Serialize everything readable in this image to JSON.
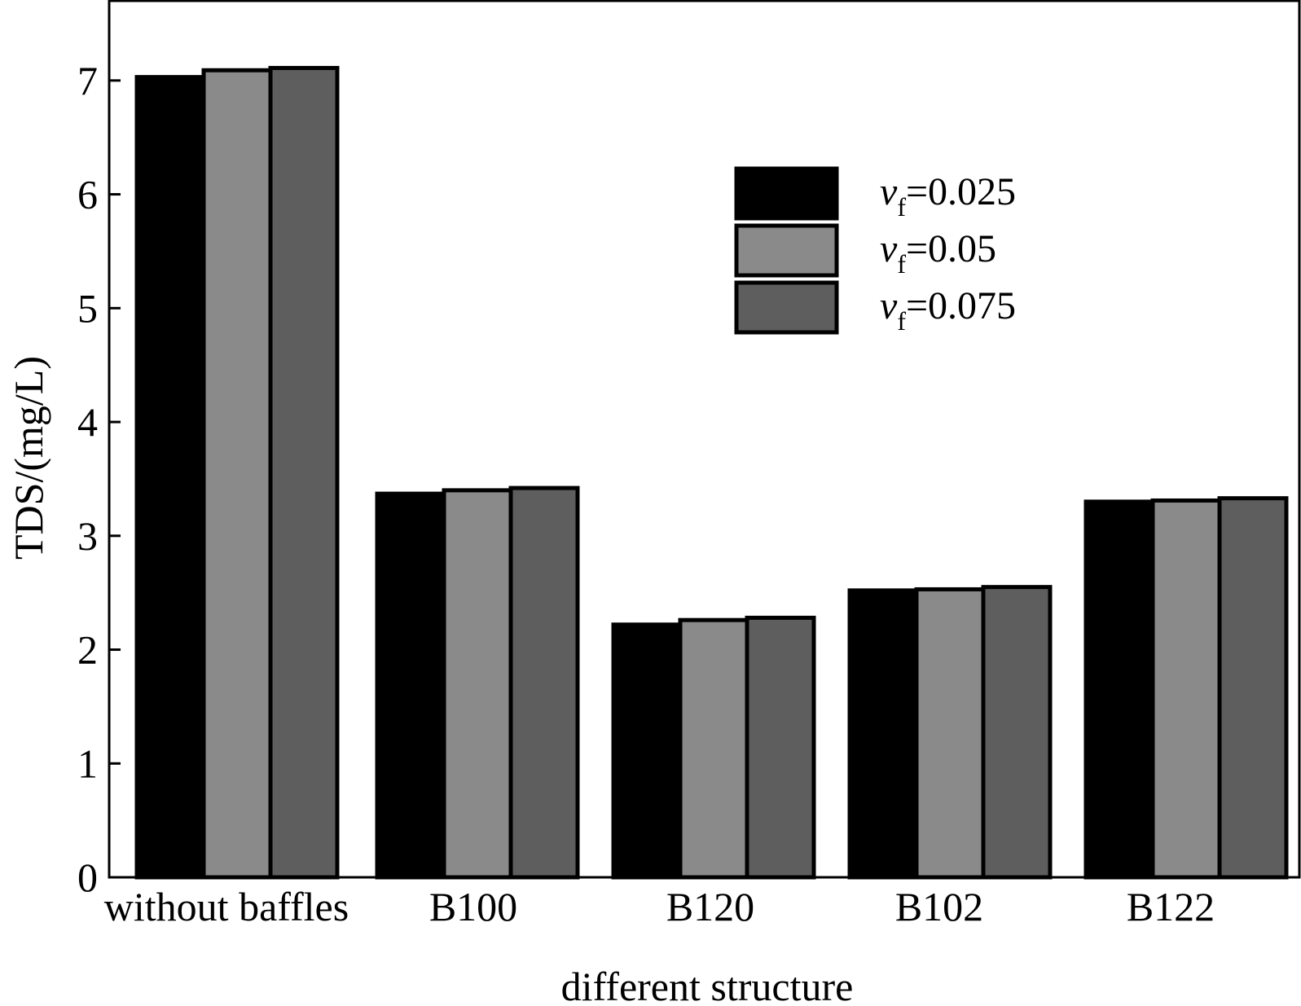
{
  "chart_data": {
    "type": "bar",
    "xlabel": "different structure",
    "ylabel": "TDS/(mg/L)",
    "ylim": [
      0,
      7.7
    ],
    "yticks": [
      0,
      1,
      2,
      3,
      4,
      5,
      6,
      7
    ],
    "categories": [
      "without baffles",
      "B100",
      "B120",
      "B102",
      "B122"
    ],
    "series": [
      {
        "name": "v_f=0.025",
        "legend_var": "v",
        "legend_sub": "f",
        "legend_value": "=0.025",
        "color": "#000000",
        "values": [
          7.03,
          3.37,
          2.22,
          2.52,
          3.3
        ]
      },
      {
        "name": "v_f=0.05",
        "legend_var": "v",
        "legend_sub": "f",
        "legend_value": "=0.05",
        "color": "#8a8a8a",
        "values": [
          7.09,
          3.4,
          2.26,
          2.53,
          3.31
        ]
      },
      {
        "name": "v_f=0.075",
        "legend_var": "v",
        "legend_sub": "f",
        "legend_value": "=0.075",
        "color": "#5e5e5e",
        "values": [
          7.11,
          3.42,
          2.28,
          2.55,
          3.33
        ]
      }
    ],
    "legend_position": "top-right",
    "grid": false
  }
}
